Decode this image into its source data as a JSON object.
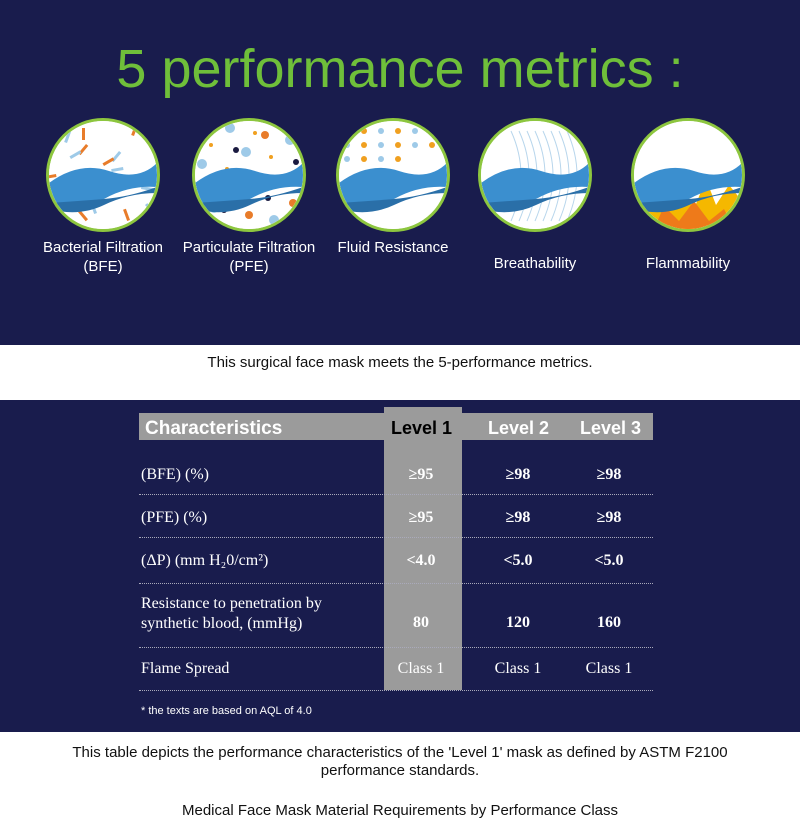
{
  "title": "5 performance metrics :",
  "metrics": [
    {
      "label": "Bacterial Filtration (BFE)",
      "icon": "bacteria-filter-icon"
    },
    {
      "label": "Particulate Filtration (PFE)",
      "icon": "particle-filter-icon"
    },
    {
      "label": "Fluid Resistance",
      "icon": "fluid-drops-icon"
    },
    {
      "label": "Breathability",
      "icon": "airflow-icon"
    },
    {
      "label": "Flammability",
      "icon": "flame-icon"
    }
  ],
  "caption1": "This surgical face mask meets the 5-performance metrics.",
  "table": {
    "headers": [
      "Characteristics",
      "Level 1",
      "Level 2",
      "Level 3"
    ],
    "rows": [
      {
        "label": "(BFE) (%)",
        "values": [
          "≥95",
          "≥98",
          "≥98"
        ]
      },
      {
        "label": "(PFE) (%)",
        "values": [
          "≥95",
          "≥98",
          "≥98"
        ]
      },
      {
        "label": "(ΔP) (mm H₂0/cm²)",
        "values": [
          "<4.0",
          "<5.0",
          "<5.0"
        ]
      },
      {
        "label": "Resistance to penetration by synthetic blood, (mmHg)",
        "values": [
          "80",
          "120",
          "160"
        ]
      },
      {
        "label": "Flame Spread",
        "values": [
          "Class 1",
          "Class 1",
          "Class 1"
        ]
      }
    ],
    "footnote": "* the texts are based on AQL of 4.0"
  },
  "caption2": "This table depicts the performance characteristics of the 'Level 1' mask as defined by ASTM F2100 performance standards.",
  "caption3": "Medical Face Mask Material Requirements by Performance Class",
  "colors": {
    "navy": "#191c4d",
    "green": "#6fbf3a",
    "gray": "#9b9b9b"
  }
}
